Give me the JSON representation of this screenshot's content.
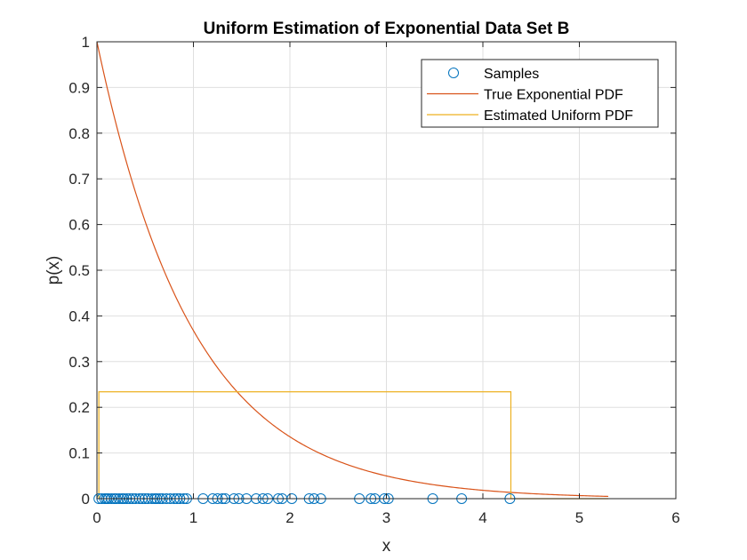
{
  "chart_data": {
    "type": "line",
    "title": "Uniform Estimation of Exponential Data Set B",
    "xlabel": "x",
    "ylabel": "p(x)",
    "xlim": [
      0,
      6
    ],
    "ylim": [
      0,
      1
    ],
    "xticks": [
      "0",
      "1",
      "2",
      "3",
      "4",
      "5",
      "6"
    ],
    "yticks": [
      "0",
      "0.1",
      "0.2",
      "0.3",
      "0.4",
      "0.5",
      "0.6",
      "0.7",
      "0.8",
      "0.9",
      "1"
    ],
    "grid": true,
    "legend_position": "top-right",
    "series": [
      {
        "name": "Samples",
        "kind": "scatter",
        "marker": "circle",
        "color": "#0072BD",
        "x": [
          0.02,
          0.05,
          0.08,
          0.1,
          0.12,
          0.15,
          0.18,
          0.2,
          0.23,
          0.26,
          0.28,
          0.31,
          0.34,
          0.37,
          0.4,
          0.44,
          0.47,
          0.5,
          0.53,
          0.57,
          0.6,
          0.62,
          0.65,
          0.68,
          0.72,
          0.76,
          0.8,
          0.83,
          0.86,
          0.9,
          0.93,
          1.1,
          1.2,
          1.25,
          1.3,
          1.33,
          1.42,
          1.47,
          1.55,
          1.65,
          1.72,
          1.77,
          1.88,
          1.92,
          2.02,
          2.2,
          2.25,
          2.32,
          2.72,
          2.84,
          2.88,
          2.98,
          3.02,
          3.48,
          3.78,
          4.28
        ],
        "y": [
          0,
          0,
          0,
          0,
          0,
          0,
          0,
          0,
          0,
          0,
          0,
          0,
          0,
          0,
          0,
          0,
          0,
          0,
          0,
          0,
          0,
          0,
          0,
          0,
          0,
          0,
          0,
          0,
          0,
          0,
          0,
          0,
          0,
          0,
          0,
          0,
          0,
          0,
          0,
          0,
          0,
          0,
          0,
          0,
          0,
          0,
          0,
          0,
          0,
          0,
          0,
          0,
          0,
          0,
          0,
          0
        ]
      },
      {
        "name": "True Exponential PDF",
        "kind": "line",
        "color": "#D95319",
        "function": "exp(-x)",
        "x_range": [
          0,
          5.3
        ]
      },
      {
        "name": "Estimated Uniform PDF",
        "kind": "line",
        "color": "#EDB120",
        "x": [
          0.02,
          0.02,
          4.29,
          4.29,
          5.3
        ],
        "y": [
          0,
          0.234,
          0.234,
          0,
          0
        ]
      }
    ]
  },
  "colors": {
    "axis": "#262626",
    "grid": "#dfdfdf"
  }
}
